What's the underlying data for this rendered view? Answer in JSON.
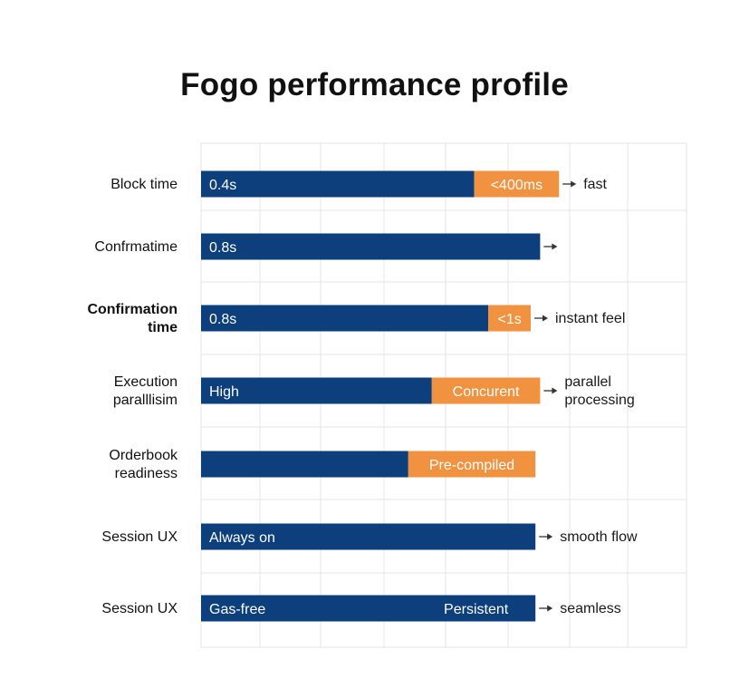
{
  "chart_data": {
    "type": "bar",
    "orientation": "horizontal",
    "stacked": true,
    "title": "Fogo performance profile",
    "xlabel": "",
    "ylabel": "",
    "grid": true,
    "legend": "none",
    "xlim": [
      0,
      100
    ],
    "colors": {
      "primary": "#0c3f7c",
      "accent": "#f0923f"
    },
    "categories": [
      "Block time",
      "Confrmatime",
      "Confirmation time",
      "Execution paralllisim",
      "Orderbook readiness",
      "Session UX",
      "Session UX"
    ],
    "rows": [
      {
        "category": "Block time",
        "primary": 58,
        "accent": 18,
        "primary_label": "0.4s",
        "accent_label": "<400ms",
        "arrow": true,
        "note": "fast"
      },
      {
        "category": "Confrmatime",
        "primary": 72,
        "accent": 0,
        "primary_label": "0.8s",
        "accent_label": "",
        "arrow": true,
        "note": ""
      },
      {
        "category": "Confirmation time",
        "primary": 61,
        "accent": 9,
        "primary_label": "0.8s",
        "accent_label": "<1s",
        "arrow": true,
        "note": "instant feel"
      },
      {
        "category": "Execution paralllisim",
        "primary": 49,
        "accent": 23,
        "primary_label": "High",
        "accent_label": "Concurent",
        "arrow": true,
        "note": "parallel processing"
      },
      {
        "category": "Orderbook readiness",
        "primary": 44,
        "accent": 27,
        "primary_label": "",
        "accent_label": "Pre-compiled",
        "arrow": false,
        "note": ""
      },
      {
        "category": "Session UX",
        "primary": 71,
        "accent": 0,
        "primary_label": "Always on",
        "accent_label": "",
        "arrow": true,
        "note": "smooth flow"
      },
      {
        "category": "Session UX",
        "primary": 71,
        "accent": 0,
        "primary_label": "Gas-free",
        "primary_label_right": "Persistent",
        "accent_label": "",
        "arrow": true,
        "note": "seamless"
      }
    ]
  }
}
